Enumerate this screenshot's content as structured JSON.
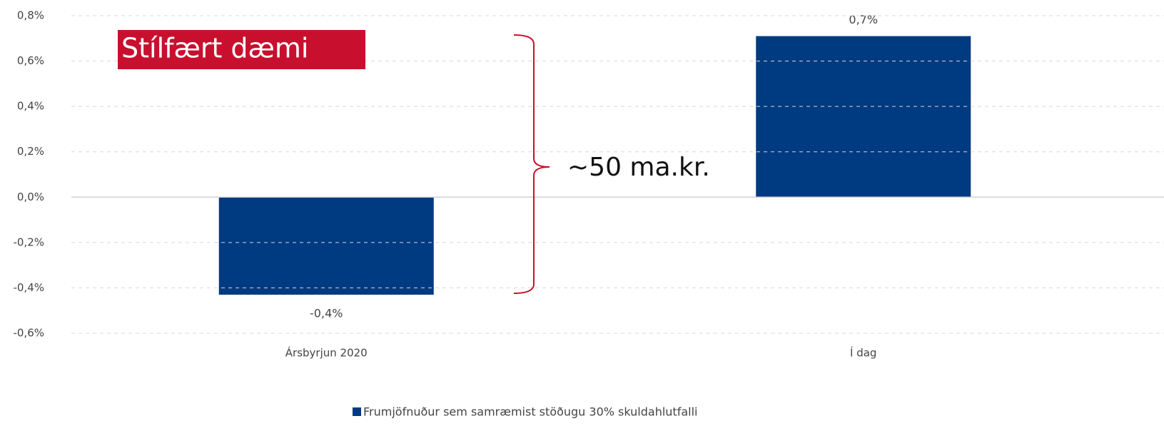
{
  "chart_data": {
    "type": "bar",
    "categories": [
      "Ársbyrjun 2020",
      "Í dag"
    ],
    "series": [
      {
        "name": "Frumjöfnuður sem samræmist stöðugu 30% skuldahlutfalli",
        "color": "#003a80",
        "values": [
          -0.43,
          0.71
        ],
        "value_labels": [
          "-0,4%",
          "0,7%"
        ]
      }
    ],
    "ylim": [
      -0.6,
      0.8
    ],
    "yticks": [
      {
        "value": -0.6,
        "label": "-0,6%"
      },
      {
        "value": -0.4,
        "label": "-0,4%"
      },
      {
        "value": -0.2,
        "label": "-0,2%"
      },
      {
        "value": 0,
        "label": "0,0%"
      },
      {
        "value": 0.2,
        "label": "0,2%"
      },
      {
        "value": 0.4,
        "label": "0,4%"
      },
      {
        "value": 0.6,
        "label": "0,6%"
      },
      {
        "value": 0.8,
        "label": "0,8%"
      }
    ],
    "grid": true,
    "legend": "bottom",
    "annotations": [
      "Stílfært dæmi",
      "~50 ma.kr."
    ]
  }
}
